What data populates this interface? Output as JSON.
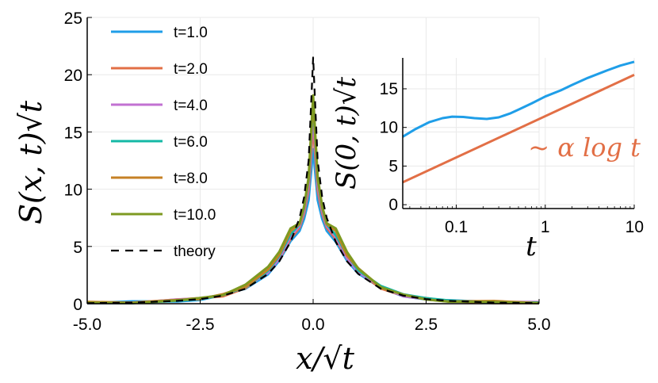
{
  "chart_data": [
    {
      "type": "line",
      "ylabel": "S(x, t)√t",
      "xlabel": "x/√t",
      "xlim": [
        -5.0,
        5.0
      ],
      "ylim": [
        0,
        25
      ],
      "x_ticks": [
        "-5.0",
        "-2.5",
        "0.0",
        "2.5",
        "5.0"
      ],
      "y_ticks": [
        "0",
        "5",
        "10",
        "15",
        "20",
        "25"
      ],
      "grid": true,
      "legend_position": "top-left",
      "series": [
        {
          "name": "t=1.0",
          "color": "#1f9ee8",
          "peak": 13.5
        },
        {
          "name": "t=2.0",
          "color": "#e26f46",
          "peak": 15.5
        },
        {
          "name": "t=4.0",
          "color": "#c271d2",
          "peak": 16.5
        },
        {
          "name": "t=6.0",
          "color": "#14b8a6",
          "peak": 17.5
        },
        {
          "name": "t=8.0",
          "color": "#c68125",
          "peak": 17.8
        },
        {
          "name": "t=10.0",
          "color": "#7e9a21",
          "peak": 18.2
        },
        {
          "name": "theory",
          "color": "#000000",
          "style": "dashed",
          "peak": 21.5
        }
      ],
      "sample_x": [
        -5.0,
        -4.0,
        -3.0,
        -2.5,
        -2.0,
        -1.5,
        -1.0,
        -0.75,
        -0.5,
        -0.3,
        -0.2,
        -0.1,
        0.0,
        0.1,
        0.2,
        0.3,
        0.5,
        0.75,
        1.0,
        1.5,
        2.0,
        2.5,
        3.0,
        4.0,
        5.0
      ],
      "theory_y": [
        0.05,
        0.1,
        0.25,
        0.4,
        0.7,
        1.3,
        2.6,
        3.7,
        5.4,
        7.5,
        9.3,
        12.5,
        21.5,
        12.5,
        9.3,
        7.5,
        5.4,
        3.7,
        2.6,
        1.3,
        0.7,
        0.4,
        0.25,
        0.1,
        0.05
      ]
    },
    {
      "type": "line",
      "xlabel": "t",
      "ylabel": "S(0, t)√t",
      "xscale": "log",
      "xlim": [
        0.025,
        10
      ],
      "ylim": [
        -0.5,
        19
      ],
      "x_ticks": [
        "0.1",
        "1",
        "10"
      ],
      "y_ticks": [
        "0",
        "5",
        "10",
        "15"
      ],
      "grid": true,
      "series": [
        {
          "name": "",
          "color": "#1f9ee8",
          "x": [
            0.025,
            0.035,
            0.05,
            0.07,
            0.09,
            0.12,
            0.16,
            0.22,
            0.3,
            0.4,
            0.5,
            0.7,
            1.0,
            1.5,
            2.0,
            3.0,
            5.0,
            7.0,
            10.0
          ],
          "y": [
            8.8,
            9.8,
            10.7,
            11.2,
            11.4,
            11.35,
            11.2,
            11.1,
            11.3,
            11.8,
            12.3,
            13.1,
            14.0,
            14.8,
            15.5,
            16.4,
            17.4,
            18.0,
            18.5
          ]
        },
        {
          "name": "",
          "color": "#e26f46",
          "x": [
            0.025,
            10.0
          ],
          "y": [
            2.9,
            16.8
          ]
        }
      ],
      "annotation": "~ α log t",
      "annotation_color": "#e26f46"
    }
  ]
}
